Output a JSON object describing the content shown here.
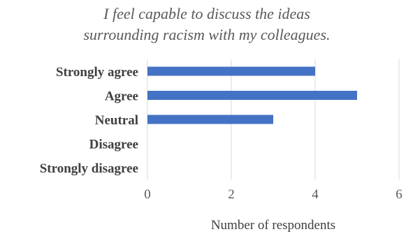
{
  "chart_data": {
    "type": "bar",
    "orientation": "horizontal",
    "title_lines": [
      "I feel capable to discuss the ideas",
      "surrounding racism with my colleagues."
    ],
    "categories": [
      "Strongly agree",
      "Agree",
      "Neutral",
      "Disagree",
      "Strongly disagree"
    ],
    "values": [
      4,
      5,
      3,
      0,
      0
    ],
    "xlabel": "Number of respondents",
    "ylabel": "",
    "xlim": [
      0,
      6
    ],
    "x_ticks": [
      0,
      2,
      4,
      6
    ],
    "grid": true,
    "legend": "none",
    "bar_color": "#4472C4",
    "grid_color": "#d9d9d9"
  }
}
